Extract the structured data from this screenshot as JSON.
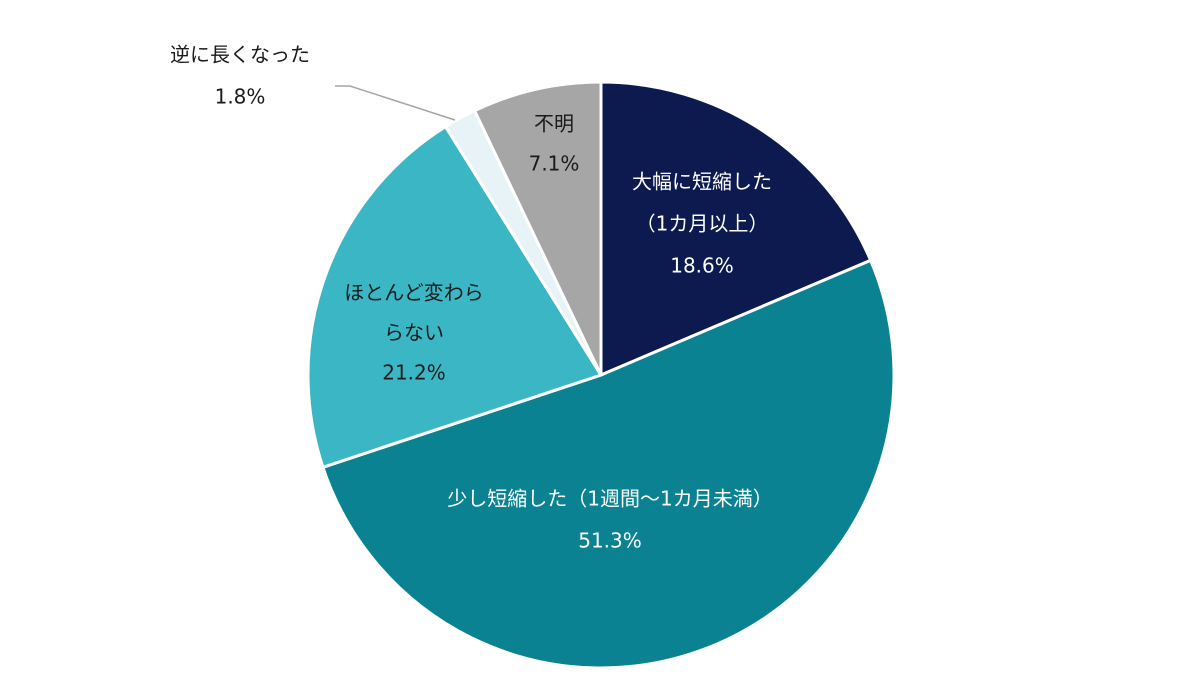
{
  "chart_data": {
    "type": "pie",
    "start_angle_deg": 0,
    "direction": "clockwise",
    "slices": [
      {
        "label_lines": [
          "大幅に短縮した",
          "（1カ月以上）"
        ],
        "value_label": "18.6%",
        "value": 18.6,
        "color": "#0c1a50",
        "text_color": "#ffffff"
      },
      {
        "label_lines": [
          "少し短縮した（1週間〜1カ月未満）"
        ],
        "value_label": "51.3%",
        "value": 51.3,
        "color": "#0a8292",
        "text_color": "#ffffff"
      },
      {
        "label_lines": [
          "ほとんど変わら",
          "らない"
        ],
        "value_label": "21.2%",
        "value": 21.2,
        "color": "#3ab6c4",
        "text_color": "#1a1a1a"
      },
      {
        "label_lines": [
          "逆に長くなった"
        ],
        "value_label": "1.8%",
        "value": 1.8,
        "color": "#e7f3f6",
        "text_color": "#1a1a1a"
      },
      {
        "label_lines": [
          "不明"
        ],
        "value_label": "7.1%",
        "value": 7.1,
        "color": "#a6a6a6",
        "text_color": "#1a1a1a"
      }
    ]
  }
}
